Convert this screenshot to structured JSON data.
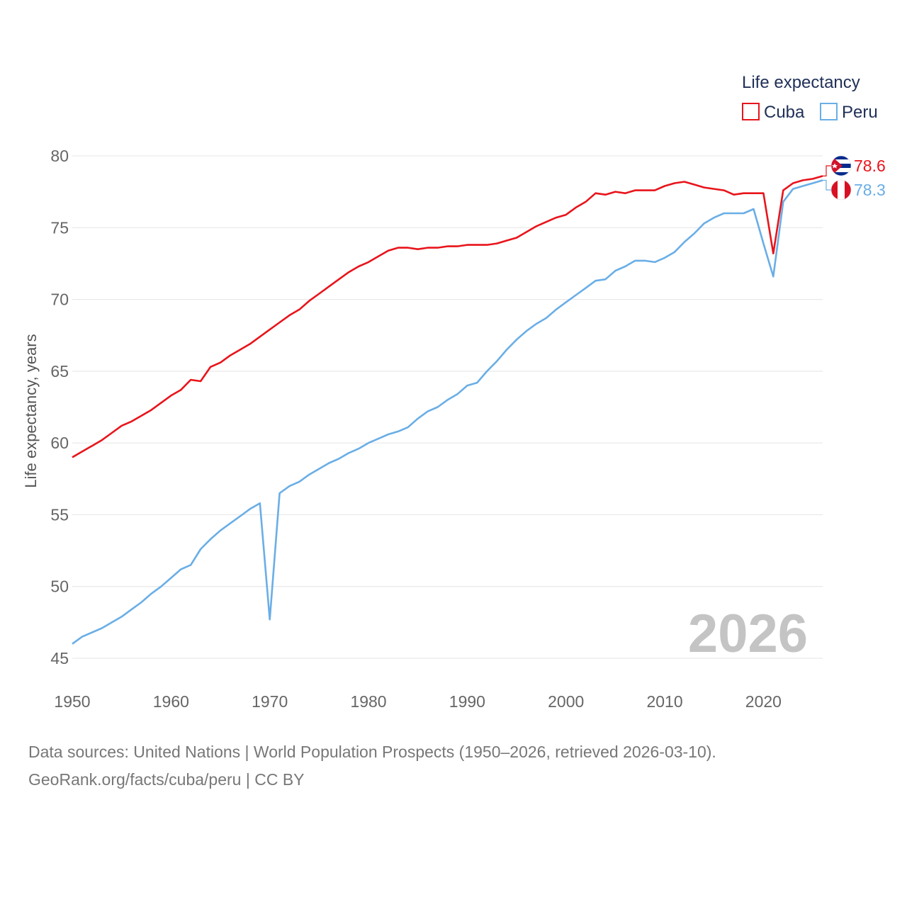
{
  "chart_data": {
    "type": "line",
    "title": "Life expectancy",
    "ylabel": "Life expectancy, years",
    "xlabel": "",
    "xlim": [
      1950,
      2026
    ],
    "ylim": [
      45,
      80
    ],
    "yticks": [
      45,
      50,
      55,
      60,
      65,
      70,
      75,
      80
    ],
    "xticks": [
      1950,
      1960,
      1970,
      1980,
      1990,
      2000,
      2010,
      2020
    ],
    "grid": true,
    "legend_position": "top-right",
    "year_label": "2026",
    "x": [
      1950,
      1951,
      1952,
      1953,
      1954,
      1955,
      1956,
      1957,
      1958,
      1959,
      1960,
      1961,
      1962,
      1963,
      1964,
      1965,
      1966,
      1967,
      1968,
      1969,
      1970,
      1971,
      1972,
      1973,
      1974,
      1975,
      1976,
      1977,
      1978,
      1979,
      1980,
      1981,
      1982,
      1983,
      1984,
      1985,
      1986,
      1987,
      1988,
      1989,
      1990,
      1991,
      1992,
      1993,
      1994,
      1995,
      1996,
      1997,
      1998,
      1999,
      2000,
      2001,
      2002,
      2003,
      2004,
      2005,
      2006,
      2007,
      2008,
      2009,
      2010,
      2011,
      2012,
      2013,
      2014,
      2015,
      2016,
      2017,
      2018,
      2019,
      2020,
      2021,
      2022,
      2023,
      2024,
      2025,
      2026
    ],
    "series": [
      {
        "name": "Cuba",
        "color": "#e8141b",
        "end_label": "78.6",
        "values": [
          59.0,
          59.4,
          59.8,
          60.2,
          60.7,
          61.2,
          61.5,
          61.9,
          62.3,
          62.8,
          63.3,
          63.7,
          64.4,
          64.3,
          65.3,
          65.6,
          66.1,
          66.5,
          66.9,
          67.4,
          67.9,
          68.4,
          68.9,
          69.3,
          69.9,
          70.4,
          70.9,
          71.4,
          71.9,
          72.3,
          72.6,
          73.0,
          73.4,
          73.6,
          73.6,
          73.5,
          73.6,
          73.6,
          73.7,
          73.7,
          73.8,
          73.8,
          73.8,
          73.9,
          74.1,
          74.3,
          74.7,
          75.1,
          75.4,
          75.7,
          75.9,
          76.4,
          76.8,
          77.4,
          77.3,
          77.5,
          77.4,
          77.6,
          77.6,
          77.6,
          77.9,
          78.1,
          78.2,
          78.0,
          77.8,
          77.7,
          77.6,
          77.3,
          77.4,
          77.4,
          77.4,
          73.2,
          77.6,
          78.1,
          78.3,
          78.4,
          78.6
        ]
      },
      {
        "name": "Peru",
        "color": "#6aaee6",
        "end_label": "78.3",
        "values": [
          46.0,
          46.5,
          46.8,
          47.1,
          47.5,
          47.9,
          48.4,
          48.9,
          49.5,
          50.0,
          50.6,
          51.2,
          51.5,
          52.6,
          53.3,
          53.9,
          54.4,
          54.9,
          55.4,
          55.8,
          47.7,
          56.5,
          57.0,
          57.3,
          57.8,
          58.2,
          58.6,
          58.9,
          59.3,
          59.6,
          60.0,
          60.3,
          60.6,
          60.8,
          61.1,
          61.7,
          62.2,
          62.5,
          63.0,
          63.4,
          64.0,
          64.2,
          65.0,
          65.7,
          66.5,
          67.2,
          67.8,
          68.3,
          68.7,
          69.3,
          69.8,
          70.3,
          70.8,
          71.3,
          71.4,
          72.0,
          72.3,
          72.7,
          72.7,
          72.6,
          72.9,
          73.3,
          74.0,
          74.6,
          75.3,
          75.7,
          76.0,
          76.0,
          76.0,
          76.3,
          73.9,
          71.6,
          76.8,
          77.7,
          77.9,
          78.1,
          78.3
        ]
      }
    ]
  },
  "source": {
    "line1": "Data sources: United Nations | World Population Prospects (1950–2026, retrieved 2026-03-10).",
    "line2": "GeoRank.org/facts/cuba/peru | CC BY"
  }
}
